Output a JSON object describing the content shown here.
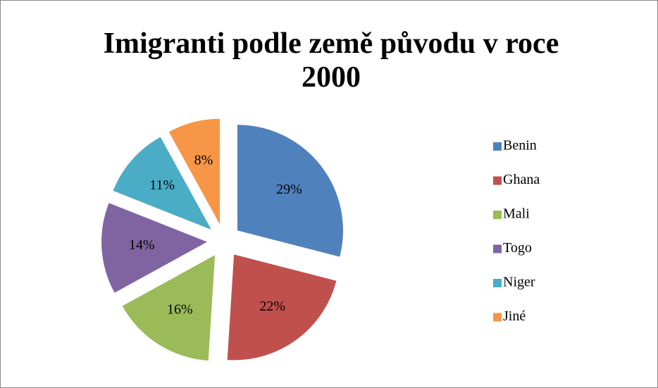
{
  "chart_data": {
    "type": "pie",
    "title": "Imigranti podle země původu v roce 2000",
    "categories": [
      "Benin",
      "Ghana",
      "Mali",
      "Togo",
      "Niger",
      "Jiné"
    ],
    "values": [
      29,
      22,
      16,
      14,
      11,
      8
    ],
    "value_labels": [
      "29%",
      "22%",
      "16%",
      "14%",
      "11%",
      "8%"
    ],
    "colors": [
      "#4F81BD",
      "#C0504D",
      "#9BBB59",
      "#8064A2",
      "#4BACC6",
      "#F79646"
    ],
    "legend": "right"
  }
}
